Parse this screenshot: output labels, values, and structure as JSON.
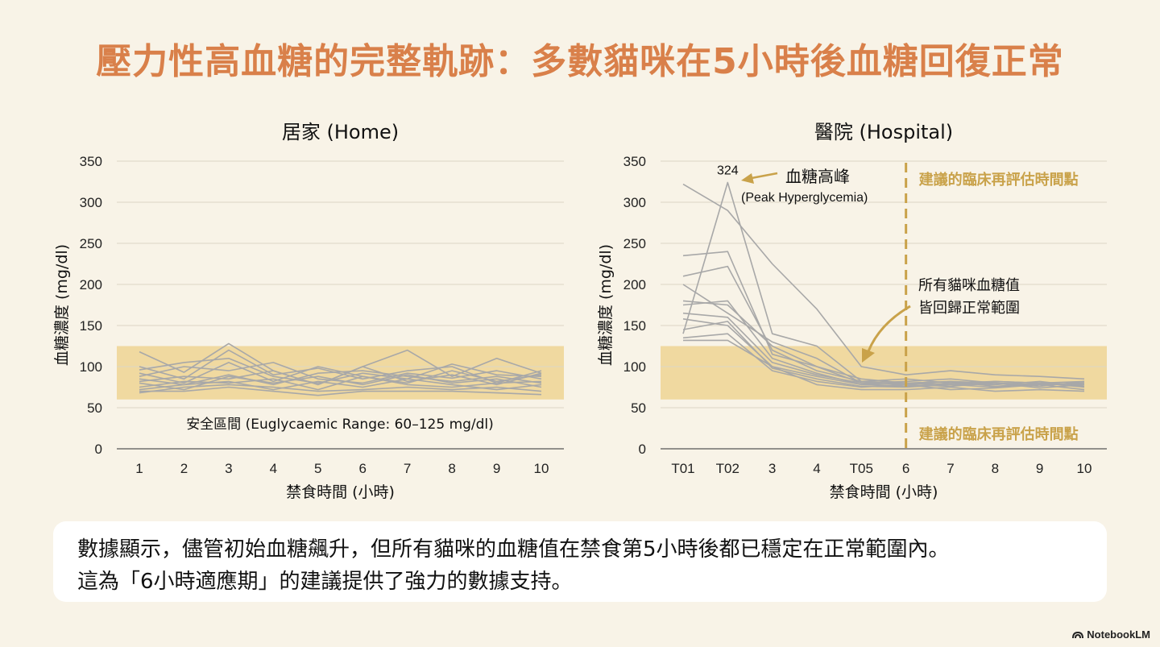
{
  "title": "壓力性高血糖的完整軌跡：多數貓咪在5小時後血糖回復正常",
  "summary": {
    "line1": "數據顯示，儘管初始血糖飆升，但所有貓咪的血糖值在禁食第5小時後都已穩定在正常範圍內。",
    "line2": "這為「6小時適應期」的建議提供了強力的數據支持。"
  },
  "watermark": "NotebookLM",
  "colors": {
    "title": "#d9804a",
    "band": "#f0d9a0",
    "lines": "#a8a8a8",
    "accent": "#c9a24a",
    "background": "#f8f3e7"
  },
  "chart_data": [
    {
      "type": "line",
      "title": "居家 (Home)",
      "xlabel": "禁食時間 (小時)",
      "ylabel": "血糖濃度 (mg/dl)",
      "ylim": [
        0,
        350
      ],
      "yticks": [
        0,
        50,
        100,
        150,
        200,
        250,
        300,
        350
      ],
      "categories": [
        "1",
        "2",
        "3",
        "4",
        "5",
        "6",
        "7",
        "8",
        "9",
        "10"
      ],
      "grid": true,
      "band": {
        "low": 60,
        "high": 125,
        "label": "安全區間 (Euglycaemic Range: 60–125 mg/dl)"
      },
      "series": [
        {
          "values": [
            118,
            93,
            128,
            95,
            78,
            100,
            120,
            88,
            110,
            92
          ]
        },
        {
          "values": [
            100,
            85,
            120,
            90,
            98,
            85,
            95,
            100,
            80,
            95
          ]
        },
        {
          "values": [
            96,
            105,
            110,
            88,
            80,
            92,
            85,
            103,
            90,
            88
          ]
        },
        {
          "values": [
            92,
            80,
            105,
            82,
            100,
            88,
            80,
            95,
            82,
            90
          ]
        },
        {
          "values": [
            88,
            100,
            95,
            105,
            85,
            80,
            92,
            86,
            95,
            85
          ]
        },
        {
          "values": [
            85,
            78,
            90,
            78,
            92,
            95,
            88,
            82,
            88,
            80
          ]
        },
        {
          "values": [
            82,
            88,
            85,
            95,
            78,
            100,
            82,
            90,
            78,
            92
          ]
        },
        {
          "values": [
            80,
            72,
            88,
            80,
            88,
            78,
            90,
            80,
            85,
            75
          ]
        },
        {
          "values": [
            75,
            82,
            80,
            85,
            72,
            88,
            78,
            75,
            80,
            82
          ]
        },
        {
          "values": [
            72,
            78,
            82,
            72,
            82,
            75,
            85,
            78,
            72,
            78
          ]
        },
        {
          "values": [
            68,
            75,
            78,
            75,
            70,
            72,
            75,
            72,
            75,
            70
          ]
        },
        {
          "values": [
            70,
            70,
            75,
            70,
            65,
            70,
            70,
            70,
            68,
            66
          ]
        }
      ]
    },
    {
      "type": "line",
      "title": "醫院 (Hospital)",
      "xlabel": "禁食時間 (小時)",
      "ylabel": "血糖濃度 (mg/dl)",
      "ylim": [
        0,
        350
      ],
      "yticks": [
        0,
        50,
        100,
        150,
        200,
        250,
        300,
        350
      ],
      "categories": [
        "T01",
        "T02",
        "3",
        "4",
        "T05",
        "6",
        "7",
        "8",
        "9",
        "10"
      ],
      "grid": true,
      "band": {
        "low": 60,
        "high": 125
      },
      "series": [
        {
          "values": [
            322,
            290,
            225,
            170,
            100,
            90,
            95,
            90,
            88,
            85
          ]
        },
        {
          "values": [
            140,
            324,
            140,
            125,
            82,
            85,
            80,
            82,
            80,
            78
          ]
        },
        {
          "values": [
            235,
            240,
            115,
            100,
            80,
            78,
            82,
            80,
            78,
            80
          ]
        },
        {
          "values": [
            210,
            222,
            120,
            95,
            82,
            80,
            78,
            75,
            80,
            78
          ]
        },
        {
          "values": [
            200,
            165,
            130,
            110,
            80,
            82,
            85,
            80,
            78,
            80
          ]
        },
        {
          "values": [
            180,
            175,
            125,
            100,
            85,
            80,
            78,
            82,
            80,
            82
          ]
        },
        {
          "values": [
            175,
            180,
            110,
            92,
            78,
            76,
            80,
            78,
            82,
            76
          ]
        },
        {
          "values": [
            165,
            160,
            105,
            90,
            80,
            78,
            76,
            80,
            76,
            82
          ]
        },
        {
          "values": [
            158,
            150,
            100,
            88,
            78,
            80,
            82,
            76,
            80,
            75
          ]
        },
        {
          "values": [
            145,
            155,
            98,
            85,
            76,
            75,
            78,
            80,
            74,
            78
          ]
        },
        {
          "values": [
            135,
            140,
            95,
            82,
            75,
            78,
            72,
            74,
            78,
            72
          ]
        },
        {
          "values": [
            132,
            132,
            100,
            78,
            72,
            72,
            75,
            70,
            72,
            70
          ]
        }
      ],
      "annotations": {
        "peak_value": "324",
        "peak_label": "血糖高峰",
        "peak_sublabel": "(Peak Hyperglycemia)",
        "normal_label_line1": "所有貓咪血糖值",
        "normal_label_line2": "皆回歸正常範圍",
        "reassess_label": "建議的臨床再評估時間點",
        "reassess_at": "6"
      }
    }
  ]
}
